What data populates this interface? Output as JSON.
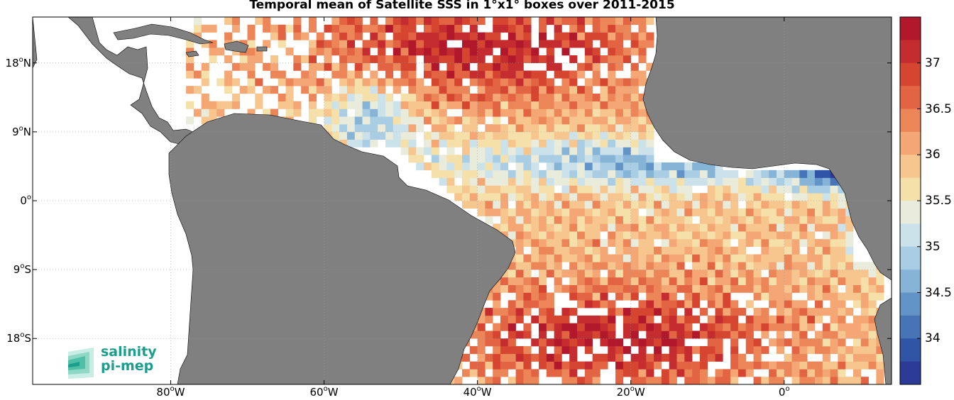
{
  "title": "Temporal mean of Satellite SSS in 1°x1° boxes over 2011-2015",
  "lat_ticks": [
    {
      "value": 18,
      "text": "18",
      "hemi": "N"
    },
    {
      "value": 9,
      "text": "9",
      "hemi": "N"
    },
    {
      "value": 0,
      "text": "0",
      "hemi": ""
    },
    {
      "value": -9,
      "text": "9",
      "hemi": "S"
    },
    {
      "value": -18,
      "text": "18",
      "hemi": "S"
    }
  ],
  "lon_ticks": [
    {
      "value": -80,
      "text": "80",
      "hemi": "W"
    },
    {
      "value": -60,
      "text": "60",
      "hemi": "W"
    },
    {
      "value": -40,
      "text": "40",
      "hemi": "W"
    },
    {
      "value": -20,
      "text": "20",
      "hemi": "W"
    },
    {
      "value": 0,
      "text": "0",
      "hemi": ""
    }
  ],
  "colorbar": {
    "min": 33.5,
    "max": 37.5,
    "ticks": [
      "37",
      "36.5",
      "36",
      "35.5",
      "35",
      "34.5",
      "34"
    ],
    "colors": [
      "#b2182b",
      "#c42c2f",
      "#d6452f",
      "#e26443",
      "#ec8659",
      "#f4a774",
      "#f7c68f",
      "#f5e0a9",
      "#e9ebdb",
      "#cce2ea",
      "#a9cde3",
      "#86b4d7",
      "#6394c7",
      "#4674b7",
      "#3155a6",
      "#2c3b97"
    ]
  },
  "map": {
    "lon_range": [
      -98,
      14
    ],
    "lat_range": [
      -24,
      24
    ],
    "land_color": "#808080",
    "grid": true
  },
  "logo": {
    "line1": "salinity",
    "line2": "pi-mep"
  }
}
